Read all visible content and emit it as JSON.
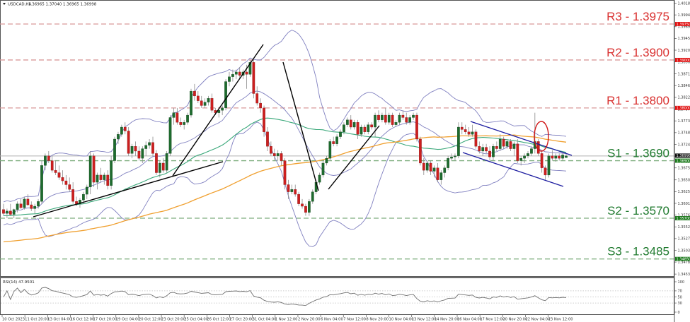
{
  "header": {
    "symbol": "USDCAD,H4",
    "ohlc": "1.36965 1.37040 1.36965 1.36998",
    "rsi_label": "RSI(14) 47.9501"
  },
  "colors": {
    "bull": "#1e6b2e",
    "bear": "#cc1f1f",
    "resistance": "#d9302f",
    "support": "#1f7a2e",
    "bollinger": "#8080c0",
    "ma_green": "#3aa87a",
    "ma_orange": "#f0a030",
    "channel": "#1c1ca0",
    "trend": "#000000",
    "circle": "#d01818"
  },
  "levels": [
    {
      "name": "R3",
      "label": "R3 - 1.3975",
      "price": 1.3975,
      "tag": "1.39750",
      "type": "resistance"
    },
    {
      "name": "R2",
      "label": "R2 - 1.3900",
      "price": 1.39,
      "tag": "1.39000",
      "type": "resistance"
    },
    {
      "name": "R1",
      "label": "R1 - 1.3800",
      "price": 1.38,
      "tag": "1.38000",
      "type": "resistance"
    },
    {
      "name": "S1",
      "label": "S1 - 1.3690",
      "price": 1.369,
      "tag": "1.36900",
      "type": "support"
    },
    {
      "name": "S2",
      "label": "S2 - 1.3570",
      "price": 1.357,
      "tag": "1.35700",
      "type": "support"
    },
    {
      "name": "S3",
      "label": "S3 - 1.3485",
      "price": 1.3485,
      "tag": "1.34850",
      "type": "support"
    }
  ],
  "current_price": {
    "value": 1.36998,
    "tag": "1.36998"
  },
  "price_axis": [
    "1.40185",
    "1.39940",
    "1.39695",
    "1.39450",
    "1.39205",
    "1.38960",
    "1.38710",
    "1.38465",
    "1.38220",
    "1.37975",
    "1.37730",
    "1.37485",
    "1.37240",
    "1.36995",
    "1.36750",
    "1.36500",
    "1.36255",
    "1.36010",
    "1.35765",
    "1.35520",
    "1.35275",
    "1.35030",
    "1.34785",
    "1.34535"
  ],
  "rsi_axis": [
    "100",
    "70",
    "50",
    "30",
    "0"
  ],
  "time_axis": [
    "10 Oct 2023",
    "11 Oct 20:00",
    "13 Oct 04:00",
    "16 Oct 12:00",
    "17 Oct 20:00",
    "19 Oct 04:00",
    "20 Oct 12:00",
    "23 Oct 20:00",
    "25 Oct 04:00",
    "26 Oct 12:00",
    "27 Oct 20:00",
    "31 Oct 04:00",
    "1 Nov 12:00",
    "2 Nov 20:00",
    "6 Nov 04:00",
    "7 Nov 12:00",
    "8 Nov 20:00",
    "10 Nov 04:00",
    "13 Nov 12:00",
    "14 Nov 20:00",
    "16 Nov 04:00",
    "17 Nov 12:00",
    "20 Nov 20:00",
    "22 Nov 04:00",
    "23 Nov 12:00"
  ],
  "chart_data": {
    "type": "candlestick",
    "title": "USDCAD,H4",
    "ylabel": "Price",
    "ylim": [
      1.34535,
      1.40185
    ],
    "grid": false,
    "candles": [
      [
        1.3588,
        1.36,
        1.3575,
        1.358
      ],
      [
        1.358,
        1.359,
        1.357,
        1.3585
      ],
      [
        1.3585,
        1.36,
        1.3575,
        1.3578
      ],
      [
        1.3578,
        1.359,
        1.357,
        1.3588
      ],
      [
        1.3588,
        1.3605,
        1.3582,
        1.36
      ],
      [
        1.36,
        1.361,
        1.359,
        1.3592
      ],
      [
        1.3592,
        1.3615,
        1.3588,
        1.361
      ],
      [
        1.361,
        1.362,
        1.3595,
        1.3598
      ],
      [
        1.3598,
        1.3605,
        1.3585,
        1.359
      ],
      [
        1.359,
        1.36,
        1.358,
        1.3595
      ],
      [
        1.3595,
        1.361,
        1.359,
        1.3605
      ],
      [
        1.3605,
        1.369,
        1.36,
        1.368
      ],
      [
        1.368,
        1.3705,
        1.367,
        1.37
      ],
      [
        1.37,
        1.371,
        1.3685,
        1.369
      ],
      [
        1.369,
        1.37,
        1.3665,
        1.367
      ],
      [
        1.367,
        1.369,
        1.366,
        1.3665
      ],
      [
        1.3665,
        1.368,
        1.365,
        1.3655
      ],
      [
        1.3655,
        1.367,
        1.364,
        1.3648
      ],
      [
        1.3648,
        1.366,
        1.363,
        1.364
      ],
      [
        1.364,
        1.3655,
        1.3625,
        1.363
      ],
      [
        1.363,
        1.3645,
        1.36,
        1.3605
      ],
      [
        1.3605,
        1.3615,
        1.3595,
        1.36
      ],
      [
        1.36,
        1.3612,
        1.3592,
        1.3608
      ],
      [
        1.3608,
        1.3625,
        1.36,
        1.362
      ],
      [
        1.362,
        1.364,
        1.361,
        1.3635
      ],
      [
        1.3635,
        1.371,
        1.362,
        1.37
      ],
      [
        1.37,
        1.3705,
        1.3635,
        1.3645
      ],
      [
        1.3645,
        1.3665,
        1.363,
        1.366
      ],
      [
        1.366,
        1.3675,
        1.3645,
        1.365
      ],
      [
        1.365,
        1.3665,
        1.364,
        1.366
      ],
      [
        1.366,
        1.367,
        1.363,
        1.3638
      ],
      [
        1.3638,
        1.37,
        1.363,
        1.369
      ],
      [
        1.369,
        1.374,
        1.3685,
        1.3735
      ],
      [
        1.3735,
        1.375,
        1.3725,
        1.3745
      ],
      [
        1.3745,
        1.3765,
        1.374,
        1.376
      ],
      [
        1.376,
        1.377,
        1.3745,
        1.3752
      ],
      [
        1.3752,
        1.376,
        1.37,
        1.3705
      ],
      [
        1.3705,
        1.3725,
        1.3695,
        1.372
      ],
      [
        1.372,
        1.373,
        1.37,
        1.371
      ],
      [
        1.371,
        1.372,
        1.369,
        1.3695
      ],
      [
        1.3695,
        1.372,
        1.3685,
        1.3715
      ],
      [
        1.3715,
        1.373,
        1.37,
        1.3722
      ],
      [
        1.3722,
        1.3735,
        1.3715,
        1.3728
      ],
      [
        1.3728,
        1.374,
        1.37,
        1.3705
      ],
      [
        1.3705,
        1.3712,
        1.366,
        1.3665
      ],
      [
        1.3665,
        1.369,
        1.3655,
        1.3685
      ],
      [
        1.3685,
        1.3695,
        1.3665,
        1.367
      ],
      [
        1.367,
        1.371,
        1.3665,
        1.3705
      ],
      [
        1.3705,
        1.3785,
        1.37,
        1.378
      ],
      [
        1.378,
        1.38,
        1.3765,
        1.379
      ],
      [
        1.379,
        1.38,
        1.3765,
        1.377
      ],
      [
        1.377,
        1.378,
        1.376,
        1.3765
      ],
      [
        1.3765,
        1.3775,
        1.3755,
        1.377
      ],
      [
        1.377,
        1.379,
        1.3765,
        1.3785
      ],
      [
        1.3785,
        1.384,
        1.378,
        1.3835
      ],
      [
        1.3835,
        1.385,
        1.3815,
        1.3825
      ],
      [
        1.3825,
        1.3835,
        1.381,
        1.3815
      ],
      [
        1.3815,
        1.3825,
        1.38,
        1.3805
      ],
      [
        1.3805,
        1.382,
        1.38,
        1.3812
      ],
      [
        1.3812,
        1.3825,
        1.3805,
        1.382
      ],
      [
        1.382,
        1.383,
        1.379,
        1.3795
      ],
      [
        1.3795,
        1.38,
        1.3785,
        1.379
      ],
      [
        1.379,
        1.38,
        1.378,
        1.3795
      ],
      [
        1.3795,
        1.3805,
        1.3785,
        1.38
      ],
      [
        1.38,
        1.386,
        1.3795,
        1.3855
      ],
      [
        1.3855,
        1.3875,
        1.3845,
        1.3865
      ],
      [
        1.3865,
        1.388,
        1.3855,
        1.387
      ],
      [
        1.387,
        1.388,
        1.386,
        1.3875
      ],
      [
        1.3875,
        1.3885,
        1.386,
        1.3868
      ],
      [
        1.3868,
        1.388,
        1.386,
        1.3875
      ],
      [
        1.3875,
        1.389,
        1.384,
        1.387
      ],
      [
        1.387,
        1.39,
        1.3865,
        1.3895
      ],
      [
        1.3895,
        1.39,
        1.382,
        1.383
      ],
      [
        1.383,
        1.3845,
        1.3805,
        1.381
      ],
      [
        1.381,
        1.382,
        1.379,
        1.38
      ],
      [
        1.38,
        1.3805,
        1.374,
        1.375
      ],
      [
        1.375,
        1.376,
        1.371,
        1.372
      ],
      [
        1.372,
        1.373,
        1.37,
        1.3705
      ],
      [
        1.3705,
        1.3715,
        1.369,
        1.37
      ],
      [
        1.37,
        1.3712,
        1.369,
        1.3705
      ],
      [
        1.3705,
        1.371,
        1.368,
        1.369
      ],
      [
        1.369,
        1.3695,
        1.363,
        1.364
      ],
      [
        1.364,
        1.365,
        1.361,
        1.3625
      ],
      [
        1.3625,
        1.364,
        1.362,
        1.363
      ],
      [
        1.363,
        1.364,
        1.3615,
        1.362
      ],
      [
        1.362,
        1.3625,
        1.3595,
        1.36
      ],
      [
        1.36,
        1.361,
        1.359,
        1.3595
      ],
      [
        1.3595,
        1.36,
        1.3575,
        1.3582
      ],
      [
        1.3582,
        1.361,
        1.3575,
        1.3605
      ],
      [
        1.3605,
        1.363,
        1.36,
        1.3625
      ],
      [
        1.3625,
        1.365,
        1.362,
        1.3645
      ],
      [
        1.3645,
        1.3665,
        1.364,
        1.366
      ],
      [
        1.366,
        1.369,
        1.3655,
        1.3685
      ],
      [
        1.3685,
        1.37,
        1.368,
        1.3695
      ],
      [
        1.3695,
        1.3735,
        1.369,
        1.373
      ],
      [
        1.373,
        1.374,
        1.372,
        1.3725
      ],
      [
        1.3725,
        1.3745,
        1.372,
        1.374
      ],
      [
        1.374,
        1.3755,
        1.3735,
        1.375
      ],
      [
        1.375,
        1.377,
        1.3745,
        1.3765
      ],
      [
        1.3765,
        1.378,
        1.376,
        1.3775
      ],
      [
        1.3775,
        1.3785,
        1.3755,
        1.376
      ],
      [
        1.376,
        1.3775,
        1.3755,
        1.377
      ],
      [
        1.377,
        1.3775,
        1.3735,
        1.3745
      ],
      [
        1.3745,
        1.3765,
        1.374,
        1.376
      ],
      [
        1.376,
        1.3765,
        1.3745,
        1.375
      ],
      [
        1.375,
        1.377,
        1.3745,
        1.3765
      ],
      [
        1.3765,
        1.377,
        1.3755,
        1.376
      ],
      [
        1.376,
        1.379,
        1.374,
        1.3785
      ],
      [
        1.3785,
        1.3795,
        1.377,
        1.3775
      ],
      [
        1.3775,
        1.379,
        1.377,
        1.3785
      ],
      [
        1.3785,
        1.38,
        1.3765,
        1.377
      ],
      [
        1.377,
        1.379,
        1.3765,
        1.3785
      ],
      [
        1.3785,
        1.379,
        1.376,
        1.3765
      ],
      [
        1.3765,
        1.3775,
        1.376,
        1.377
      ],
      [
        1.377,
        1.379,
        1.3765,
        1.3785
      ],
      [
        1.3785,
        1.3795,
        1.3775,
        1.378
      ],
      [
        1.378,
        1.379,
        1.3765,
        1.377
      ],
      [
        1.377,
        1.3785,
        1.3765,
        1.378
      ],
      [
        1.378,
        1.379,
        1.3775,
        1.3785
      ],
      [
        1.3785,
        1.379,
        1.373,
        1.3735
      ],
      [
        1.3735,
        1.374,
        1.368,
        1.3685
      ],
      [
        1.3685,
        1.3695,
        1.366,
        1.367
      ],
      [
        1.367,
        1.369,
        1.3665,
        1.3685
      ],
      [
        1.3685,
        1.369,
        1.366,
        1.3668
      ],
      [
        1.3668,
        1.368,
        1.3655,
        1.3675
      ],
      [
        1.3675,
        1.3685,
        1.3645,
        1.365
      ],
      [
        1.365,
        1.367,
        1.364,
        1.3665
      ],
      [
        1.3665,
        1.368,
        1.3655,
        1.3675
      ],
      [
        1.3675,
        1.37,
        1.367,
        1.3695
      ],
      [
        1.3695,
        1.3705,
        1.369,
        1.3698
      ],
      [
        1.3698,
        1.3705,
        1.369,
        1.37
      ],
      [
        1.37,
        1.377,
        1.3695,
        1.376
      ],
      [
        1.376,
        1.377,
        1.3745,
        1.3755
      ],
      [
        1.3755,
        1.3765,
        1.3745,
        1.375
      ],
      [
        1.375,
        1.376,
        1.374,
        1.3745
      ],
      [
        1.3745,
        1.3765,
        1.374,
        1.375
      ],
      [
        1.375,
        1.3755,
        1.3715,
        1.372
      ],
      [
        1.372,
        1.373,
        1.3705,
        1.371
      ],
      [
        1.371,
        1.3725,
        1.37,
        1.3718
      ],
      [
        1.3718,
        1.3725,
        1.3705,
        1.371
      ],
      [
        1.371,
        1.372,
        1.369,
        1.3698
      ],
      [
        1.3698,
        1.3725,
        1.369,
        1.372
      ],
      [
        1.372,
        1.373,
        1.371,
        1.3715
      ],
      [
        1.3715,
        1.3745,
        1.371,
        1.3735
      ],
      [
        1.3735,
        1.374,
        1.3715,
        1.372
      ],
      [
        1.372,
        1.3735,
        1.3715,
        1.373
      ],
      [
        1.373,
        1.3735,
        1.371,
        1.3715
      ],
      [
        1.3715,
        1.373,
        1.37,
        1.3725
      ],
      [
        1.3725,
        1.3735,
        1.3685,
        1.369
      ],
      [
        1.369,
        1.37,
        1.368,
        1.3695
      ],
      [
        1.3695,
        1.3705,
        1.3685,
        1.37
      ],
      [
        1.37,
        1.371,
        1.3695,
        1.3705
      ],
      [
        1.3705,
        1.372,
        1.37,
        1.3715
      ],
      [
        1.3715,
        1.379,
        1.3705,
        1.373
      ],
      [
        1.373,
        1.3735,
        1.37,
        1.3705
      ],
      [
        1.3705,
        1.371,
        1.3665,
        1.3675
      ],
      [
        1.3675,
        1.368,
        1.365,
        1.366
      ],
      [
        1.366,
        1.3705,
        1.3655,
        1.37
      ],
      [
        1.37,
        1.3712,
        1.369,
        1.3695
      ],
      [
        1.3695,
        1.3705,
        1.3688,
        1.37
      ],
      [
        1.37,
        1.3705,
        1.369,
        1.3695
      ],
      [
        1.3695,
        1.3705,
        1.369,
        1.3702
      ],
      [
        1.36965,
        1.3704,
        1.36965,
        1.36998
      ]
    ],
    "indicators": {
      "bollinger_bands": "upper / middle / lower envelope (blue-violet)",
      "moving_average_green": "medium MA (green)",
      "moving_average_orange": "long MA (orange)"
    },
    "rsi": {
      "label": "RSI(14)",
      "last": 47.9501,
      "levels": [
        70,
        50,
        30
      ],
      "ylim": [
        0,
        100
      ]
    },
    "annotations": [
      "Ascending trendlines (black) from 10 Oct low",
      "Sharp descending line from 1 Nov high to 6 Nov low",
      "Ascending line 6 Nov to 8 Nov",
      "Descending channel (dark blue) from 16 Nov",
      "Red ellipse marking spike at ~22 Nov",
      "Support/resistance dashed levels R1-R3, S1-S3"
    ],
    "xlabel": "",
    "categories": [
      "10 Oct 2023",
      "11 Oct 20:00",
      "13 Oct 04:00",
      "16 Oct 12:00",
      "17 Oct 20:00",
      "19 Oct 04:00",
      "20 Oct 12:00",
      "23 Oct 20:00",
      "25 Oct 04:00",
      "26 Oct 12:00",
      "27 Oct 20:00",
      "31 Oct 04:00",
      "1 Nov 12:00",
      "2 Nov 20:00",
      "6 Nov 04:00",
      "7 Nov 12:00",
      "8 Nov 20:00",
      "10 Nov 04:00",
      "13 Nov 12:00",
      "14 Nov 20:00",
      "16 Nov 04:00",
      "17 Nov 12:00",
      "20 Nov 20:00",
      "22 Nov 04:00",
      "23 Nov 12:00"
    ]
  }
}
